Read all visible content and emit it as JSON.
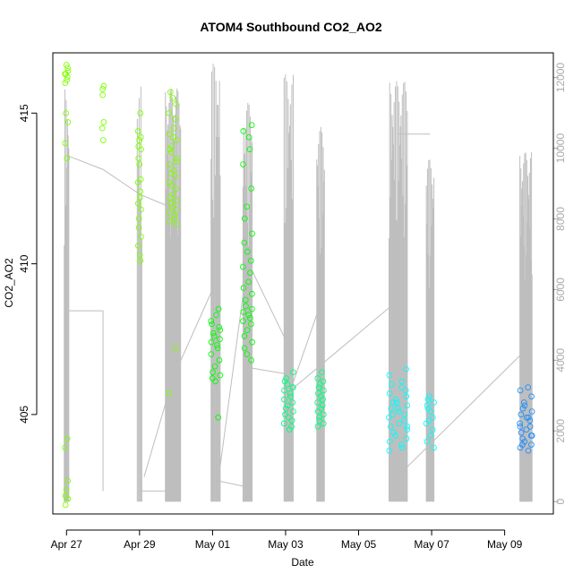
{
  "chart_data": {
    "type": "scatter",
    "title": "ATOM4 Southbound CO2_AO2",
    "xlabel": "Date",
    "ylabel": "CO2_AO2",
    "x_ticks": [
      "Apr 27",
      "Apr 29",
      "May 01",
      "May 03",
      "May 05",
      "May 07",
      "May 09"
    ],
    "y_ticks": [
      405,
      410,
      415
    ],
    "y2_ticks": [
      0,
      2000,
      4000,
      6000,
      8000,
      10000,
      12000
    ],
    "xlim": [
      "2024-04-26T15:00",
      "2024-05-10T08:00"
    ],
    "ylim": [
      401.7,
      417.0
    ],
    "y2lim": [
      -350,
      12700
    ],
    "colors": {
      "secondary_series": "#bebebe",
      "secondary_axis": "#aaaaaa",
      "points_scale": [
        "#7fff00",
        "#00ff00",
        "#00ff7f",
        "#00ffff",
        "#00bfff",
        "#1e90ff"
      ]
    },
    "series": [
      {
        "color": "#7fff00",
        "clusters": [
          {
            "t": "2024-04-27T00:00",
            "spread_h": 2,
            "values": [
              416.6,
              416.5,
              416.3,
              416.2,
              416.1,
              416.0,
              416.4,
              416.3,
              415.0,
              414.7,
              414.0,
              413.5,
              404.2,
              403.9,
              402.8,
              402.5,
              402.3,
              402.2,
              402.0
            ]
          },
          {
            "t": "2024-04-28T00:00",
            "spread_h": 1,
            "values": [
              415.9,
              415.8,
              415.6,
              414.7,
              414.5,
              414.1
            ]
          },
          {
            "t": "2024-04-29T00:00",
            "spread_h": 2,
            "values": [
              415.0,
              414.4,
              414.2,
              414.1,
              413.9,
              413.8,
              413.5,
              413.3,
              412.8,
              412.7,
              412.4,
              412.2,
              412.0,
              411.8,
              411.5,
              411.2,
              410.9,
              410.6,
              410.3,
              410.1
            ]
          },
          {
            "t": "2024-04-29T22:00",
            "spread_h": 5,
            "values": [
              415.7,
              415.5,
              415.3,
              415.0,
              414.8,
              414.5,
              414.3,
              414.1,
              413.9,
              413.7,
              413.5,
              413.3,
              413.1,
              412.9,
              412.7,
              412.5,
              412.3,
              412.2,
              412.1,
              412.0,
              411.9,
              411.8,
              411.7,
              411.6,
              411.5,
              411.4,
              411.3,
              412.6,
              413.0,
              413.4,
              413.8,
              414.2,
              407.2,
              405.7
            ]
          }
        ]
      },
      {
        "color": "#00ff00",
        "clusters": [
          {
            "t": "2024-05-01T02:00",
            "spread_h": 6,
            "values": [
              408.5,
              408.3,
              408.0,
              407.8,
              407.7,
              407.6,
              407.5,
              407.4,
              407.3,
              407.2,
              407.0,
              406.8,
              406.6,
              406.4,
              406.3,
              406.2,
              406.1,
              407.9,
              408.1,
              404.9
            ]
          },
          {
            "t": "2024-05-01T23:00",
            "spread_h": 6,
            "values": [
              414.6,
              414.4,
              414.2,
              413.8,
              413.3,
              412.5,
              411.9,
              411.5,
              411.0,
              410.7,
              410.4,
              410.1,
              409.9,
              409.7,
              409.4,
              409.2,
              409.0,
              408.8,
              408.6,
              408.5,
              408.4,
              408.3,
              408.2,
              408.1,
              408.0,
              407.8,
              407.6,
              407.4,
              407.2,
              407.0,
              406.8
            ]
          }
        ]
      },
      {
        "color": "#00ff7f",
        "clusters": [
          {
            "t": "2024-05-03T02:00",
            "spread_h": 6,
            "values": [
              406.4,
              406.2,
              406.0,
              405.9,
              405.8,
              405.7,
              405.6,
              405.5,
              405.4,
              405.3,
              405.2,
              405.1,
              405.0,
              404.9,
              404.8,
              404.7,
              404.6,
              404.5,
              406.1,
              405.9
            ]
          },
          {
            "t": "2024-05-03T23:00",
            "spread_h": 4,
            "values": [
              406.4,
              406.2,
              406.1,
              406.0,
              405.9,
              405.8,
              405.7,
              405.6,
              405.5,
              405.4,
              405.3,
              405.2,
              405.1,
              405.0,
              404.9,
              404.8,
              404.7,
              404.6
            ]
          }
        ]
      },
      {
        "color": "#00ffff",
        "clusters": [
          {
            "t": "2024-05-06T02:00",
            "spread_h": 12,
            "values": [
              406.5,
              406.3,
              406.1,
              405.9,
              405.7,
              405.6,
              405.5,
              405.4,
              405.3,
              405.2,
              405.1,
              405.0,
              404.9,
              404.8,
              404.7,
              404.6,
              404.5,
              404.4,
              404.3,
              404.2,
              404.1,
              404.0,
              403.9,
              403.8,
              405.8,
              405.4,
              405.0,
              404.6,
              406.0,
              405.2
            ]
          },
          {
            "t": "2024-05-06T23:00",
            "spread_h": 5,
            "values": [
              405.6,
              405.5,
              405.4,
              405.3,
              405.1,
              404.9,
              404.7,
              404.5,
              404.3,
              404.1,
              403.9,
              405.2,
              404.8
            ]
          }
        ]
      },
      {
        "color": "#1e90ff",
        "clusters": [
          {
            "t": "2024-05-09T14:00",
            "spread_h": 8,
            "values": [
              405.9,
              405.8,
              405.6,
              405.4,
              405.2,
              405.1,
              405.0,
              404.9,
              404.8,
              404.7,
              404.6,
              404.5,
              404.4,
              404.3,
              404.2,
              404.1,
              404.0,
              403.9,
              403.8,
              404.9,
              404.6,
              404.3,
              405.3,
              404.0
            ]
          }
        ]
      }
    ],
    "secondary_series": {
      "color": "#bebebe",
      "bursts": [
        {
          "t": "2024-04-27T00:00",
          "spread_h": 3,
          "count": 8,
          "max": 11700
        },
        {
          "t": "2024-04-29T00:00",
          "spread_h": 3,
          "count": 6,
          "max": 11800
        },
        {
          "t": "2024-04-29T22:00",
          "spread_h": 10,
          "count": 30,
          "max": 11700
        },
        {
          "t": "2024-05-01T02:00",
          "spread_h": 6,
          "count": 14,
          "max": 12400
        },
        {
          "t": "2024-05-01T23:00",
          "spread_h": 6,
          "count": 16,
          "max": 11300
        },
        {
          "t": "2024-05-03T02:00",
          "spread_h": 6,
          "count": 14,
          "max": 12100
        },
        {
          "t": "2024-05-03T23:00",
          "spread_h": 5,
          "count": 14,
          "max": 10600
        },
        {
          "t": "2024-05-06T02:00",
          "spread_h": 12,
          "count": 30,
          "max": 11900
        },
        {
          "t": "2024-05-06T23:00",
          "spread_h": 5,
          "count": 14,
          "max": 9700
        },
        {
          "t": "2024-05-09T14:00",
          "spread_h": 8,
          "count": 24,
          "max": 9900
        }
      ],
      "connectors": [
        [
          [
            "2024-04-27T00:00",
            9800
          ],
          [
            "2024-04-28T00:00",
            9400
          ],
          [
            "2024-04-29T00:00",
            8700
          ],
          [
            "2024-04-29T22:00",
            8300
          ]
        ],
        [
          [
            "2024-04-27T00:00",
            5400
          ],
          [
            "2024-04-28T00:00",
            5400
          ],
          [
            "2024-04-28T00:00",
            300
          ]
        ],
        [
          [
            "2024-04-29T00:00",
            300
          ],
          [
            "2024-04-29T22:00",
            300
          ]
        ],
        [
          [
            "2024-04-29T03:00",
            700
          ],
          [
            "2024-04-29T22:00",
            3500
          ],
          [
            "2024-05-01T02:00",
            6200
          ]
        ],
        [
          [
            "2024-05-01T02:00",
            600
          ],
          [
            "2024-05-02T00:00",
            400
          ]
        ],
        [
          [
            "2024-05-01T05:00",
            1000
          ],
          [
            "2024-05-01T23:00",
            6800
          ],
          [
            "2024-05-03T02:00",
            4400
          ]
        ],
        [
          [
            "2024-05-01T23:00",
            3800
          ],
          [
            "2024-05-03T02:00",
            3600
          ]
        ],
        [
          [
            "2024-05-03T02:00",
            3000
          ],
          [
            "2024-05-03T23:00",
            5600
          ]
        ],
        [
          [
            "2024-05-03T02:00",
            3100
          ],
          [
            "2024-05-06T02:00",
            5700
          ]
        ],
        [
          [
            "2024-05-06T02:00",
            10400
          ],
          [
            "2024-05-06T23:00",
            10400
          ]
        ],
        [
          [
            "2024-05-06T06:00",
            900
          ],
          [
            "2024-05-09T14:00",
            4300
          ]
        ]
      ]
    }
  }
}
